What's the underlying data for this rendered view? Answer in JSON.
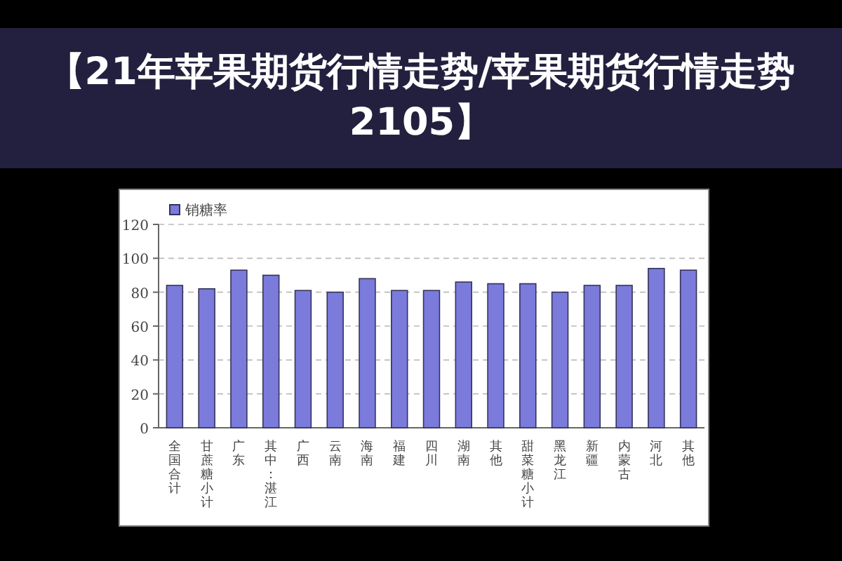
{
  "chart_data": {
    "type": "bar",
    "title": "【21年苹果期货行情走势/苹果期货行情走势2105】",
    "categories": [
      "全国合计",
      "甘蔗糖小计",
      "广东",
      "其中：湛江",
      "广西",
      "云南",
      "海南",
      "福建",
      "四川",
      "湖南",
      "其他",
      "甜菜糖小计",
      "黑龙江",
      "新疆",
      "内蒙古",
      "河北",
      "其他"
    ],
    "series": [
      {
        "name": "销糖率",
        "color": "#7b7bdc",
        "values": [
          84,
          82,
          93,
          90,
          81,
          80,
          88,
          81,
          81,
          86,
          85,
          85,
          80,
          84,
          84,
          94,
          93
        ]
      }
    ],
    "ylim": [
      0,
      120
    ],
    "yticks": [
      0,
      20,
      40,
      60,
      80,
      100,
      120
    ],
    "grid": "y",
    "legend": "top left"
  }
}
